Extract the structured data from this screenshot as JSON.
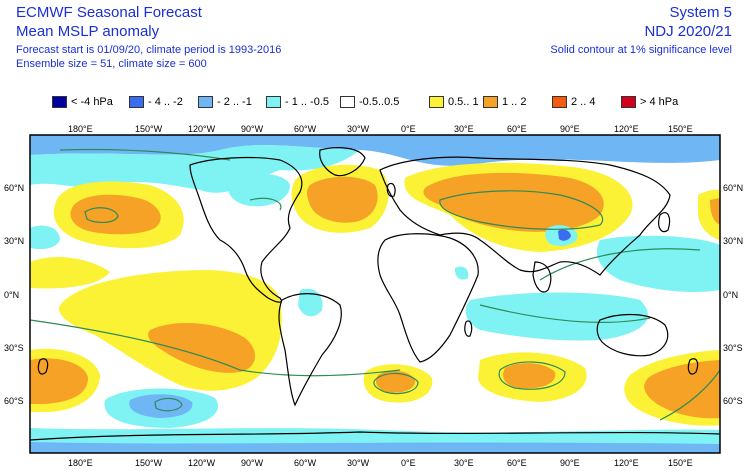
{
  "header": {
    "title": "ECMWF Seasonal Forecast",
    "subtitle": "Mean MSLP anomaly",
    "forecast_info": "Forecast start is 01/09/20, climate period is 1993-2016",
    "ensemble_info": "Ensemble size = 51, climate size = 600",
    "system": "System 5",
    "period": "NDJ 2020/21",
    "contour_note": "Solid contour at 1% significance level"
  },
  "legend": [
    {
      "label": "< -4 hPa",
      "color": "#0000a0"
    },
    {
      "label": "- 4 .. -2",
      "color": "#3a6cf0"
    },
    {
      "label": "- 2 .. -1",
      "color": "#6fb6f5"
    },
    {
      "label": "- 1 .. -0.5",
      "color": "#7ff2f4"
    },
    {
      "label": "-0.5..0.5",
      "color": "#ffffff"
    },
    {
      "label": "0.5.. 1",
      "color": "#fbf235"
    },
    {
      "label": "1 .. 2",
      "color": "#f5a226"
    },
    {
      "label": "2 .. 4",
      "color": "#f55b10"
    },
    {
      "label": "> 4 hPa",
      "color": "#d2001f"
    }
  ],
  "axes": {
    "lon_labels": [
      "180°E",
      "150°W",
      "120°W",
      "90°W",
      "60°W",
      "30°W",
      "0°E",
      "30°E",
      "60°E",
      "90°E",
      "120°E",
      "150°E"
    ],
    "lat_labels": [
      "60°N",
      "30°N",
      "0°N",
      "30°S",
      "60°S"
    ]
  },
  "colors": {
    "land_outline": "#000000",
    "significance_contour": "#2e8b57"
  }
}
